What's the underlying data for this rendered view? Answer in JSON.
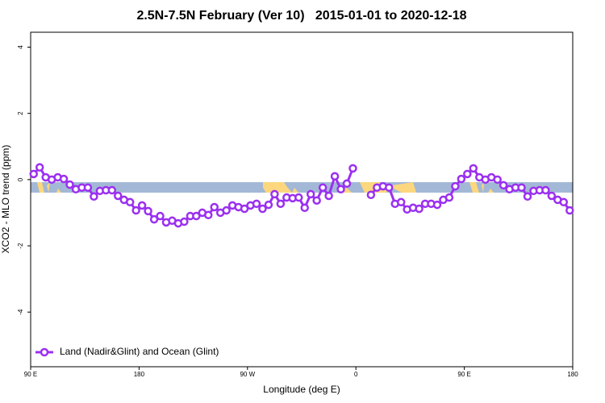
{
  "chart_data": {
    "type": "line",
    "title": "2.5N-7.5N February (Ver 10)   2015-01-01 to 2020-12-18",
    "xlabel": "Longitude (deg E)",
    "ylabel": "XCO2 - MLO trend (ppm)",
    "x": [
      92.5,
      97.5,
      102.5,
      107.5,
      112.5,
      117.5,
      122.5,
      127.5,
      132.5,
      137.5,
      142.5,
      147.5,
      152.5,
      157.5,
      162.5,
      167.5,
      172.5,
      177.5,
      182.5,
      187.5,
      192.5,
      197.5,
      202.5,
      207.5,
      212.5,
      217.5,
      222.5,
      227.5,
      232.5,
      237.5,
      242.5,
      247.5,
      252.5,
      257.5,
      262.5,
      267.5,
      272.5,
      277.5,
      282.5,
      287.5,
      292.5,
      297.5,
      302.5,
      307.5,
      312.5,
      317.5,
      322.5,
      327.5,
      332.5,
      337.5,
      342.5,
      347.5,
      352.5,
      357.5,
      362.5,
      367.5,
      372.5,
      377.5,
      382.5,
      387.5,
      392.5,
      397.5,
      402.5,
      407.5,
      412.5,
      417.5,
      422.5,
      427.5,
      432.5,
      437.5,
      442.5,
      447.5,
      452.5,
      457.5,
      462.5,
      467.5,
      472.5,
      477.5,
      482.5,
      487.5,
      492.5,
      497.5,
      502.5,
      507.5,
      512.5,
      517.5,
      522.5,
      527.5,
      532.5,
      537.5
    ],
    "series": [
      {
        "name": "Land (Nadir&Glint) and Ocean (Glint)",
        "color": "#9b30f0",
        "values": [
          0.17,
          0.37,
          0.07,
          0,
          0.07,
          0.02,
          -0.15,
          -0.29,
          -0.24,
          -0.24,
          -0.51,
          -0.34,
          -0.32,
          -0.32,
          -0.49,
          -0.61,
          -0.68,
          -0.93,
          -0.78,
          -0.95,
          -1.2,
          -1.1,
          -1.29,
          -1.24,
          -1.32,
          -1.27,
          -1.1,
          -1.1,
          -1.0,
          -1.07,
          -0.83,
          -1.0,
          -0.93,
          -0.78,
          -0.83,
          -0.88,
          -0.78,
          -0.73,
          -0.88,
          -0.76,
          -0.44,
          -0.73,
          -0.54,
          -0.56,
          -0.54,
          -0.85,
          -0.44,
          -0.63,
          -0.24,
          -0.49,
          0.1,
          -0.29,
          -0.12,
          0.34,
          null,
          null,
          -0.46,
          -0.24,
          -0.2,
          -0.24,
          -0.73,
          -0.68,
          -0.9,
          -0.85,
          -0.88,
          -0.73,
          -0.73,
          -0.76,
          -0.61,
          -0.54,
          -0.2,
          0.02,
          0.17,
          0.34,
          0.07,
          0,
          0.07,
          0,
          -0.17,
          -0.29,
          -0.24,
          -0.24,
          -0.51,
          -0.34,
          -0.32,
          -0.32,
          -0.49,
          -0.61,
          -0.68,
          -0.93
        ]
      }
    ],
    "xlim": [
      90,
      540
    ],
    "xticks": [
      {
        "value": 90,
        "label": "90 E"
      },
      180,
      {
        "value": 270,
        "label": "90 W"
      },
      {
        "value": 360,
        "label": "0"
      },
      {
        "value": 450,
        "label": "90 E"
      },
      {
        "value": 540,
        "label": "180"
      }
    ],
    "ylim": [
      -5.65,
      4.45
    ],
    "yticks": [
      4,
      2,
      0,
      -2,
      -4
    ],
    "legend": "lower left"
  }
}
